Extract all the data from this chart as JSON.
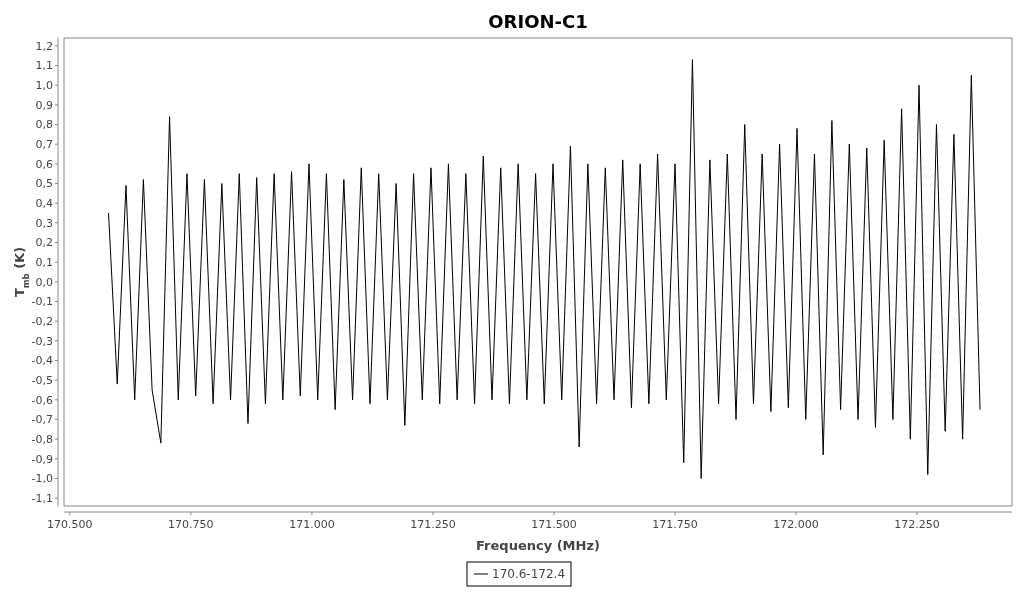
{
  "chart_data": {
    "type": "line",
    "title": "ORION-C1",
    "xlabel": "Frequency (MHz)",
    "ylabel": "T$_{mb}$ (K)",
    "xlim": [
      170488,
      172446
    ],
    "ylim": [
      -1.14,
      1.24
    ],
    "xticks": [
      {
        "value": 170500,
        "label": "170.500"
      },
      {
        "value": 170750,
        "label": "170.750"
      },
      {
        "value": 171000,
        "label": "171.000"
      },
      {
        "value": 171250,
        "label": "171.250"
      },
      {
        "value": 171500,
        "label": "171.500"
      },
      {
        "value": 171750,
        "label": "171.750"
      },
      {
        "value": 172000,
        "label": "172.000"
      },
      {
        "value": 172250,
        "label": "172.250"
      }
    ],
    "yticks": [
      {
        "value": -1.1,
        "label": "-1,1"
      },
      {
        "value": -1,
        "label": "-1,0"
      },
      {
        "value": -0.9,
        "label": "-0,9"
      },
      {
        "value": -0.8,
        "label": "-0,8"
      },
      {
        "value": -0.7,
        "label": "-0,7"
      },
      {
        "value": -0.6,
        "label": "-0,6"
      },
      {
        "value": -0.5,
        "label": "-0,5"
      },
      {
        "value": -0.4,
        "label": "-0,4"
      },
      {
        "value": -0.3,
        "label": "-0,3"
      },
      {
        "value": -0.2,
        "label": "-0,2"
      },
      {
        "value": -0.1,
        "label": "-0,1"
      },
      {
        "value": 0,
        "label": "0,0"
      },
      {
        "value": 0.1,
        "label": "0,1"
      },
      {
        "value": 0.2,
        "label": "0,2"
      },
      {
        "value": 0.3,
        "label": "0,3"
      },
      {
        "value": 0.4,
        "label": "0,4"
      },
      {
        "value": 0.5,
        "label": "0,5"
      },
      {
        "value": 0.6,
        "label": "0,6"
      },
      {
        "value": 0.7,
        "label": "0,7"
      },
      {
        "value": 0.8,
        "label": "0,8"
      },
      {
        "value": 0.9,
        "label": "0,9"
      },
      {
        "value": 1,
        "label": "1,0"
      },
      {
        "value": 1.1,
        "label": "1,1"
      },
      {
        "value": 1.2,
        "label": "1,2"
      }
    ],
    "grid": false,
    "legend": "bottom",
    "marker": "none",
    "line_style": "solid",
    "x": [
      170580,
      170598,
      170616,
      170634,
      170652,
      170670,
      170688,
      170706,
      170724,
      170742,
      170760,
      170778,
      170796,
      170814,
      170832,
      170850,
      170868,
      170886,
      170904,
      170922,
      170940,
      170958,
      170976,
      170994,
      171012,
      171030,
      171048,
      171066,
      171084,
      171102,
      171120,
      171138,
      171156,
      171174,
      171192,
      171210,
      171228,
      171246,
      171264,
      171282,
      171300,
      171318,
      171336,
      171354,
      171372,
      171390,
      171408,
      171426,
      171444,
      171462,
      171480,
      171498,
      171516,
      171534,
      171552,
      171570,
      171588,
      171606,
      171624,
      171642,
      171660,
      171678,
      171696,
      171714,
      171732,
      171750,
      171768,
      171786,
      171804,
      171822,
      171840,
      171858,
      171876,
      171894,
      171912,
      171930,
      171948,
      171966,
      171984,
      172002,
      172020,
      172038,
      172056,
      172074,
      172092,
      172110,
      172128,
      172146,
      172164,
      172182,
      172200,
      172218,
      172236,
      172254,
      172272,
      172290,
      172308,
      172326,
      172344,
      172362,
      172380
    ],
    "series": [
      {
        "name": "170.6-172.4",
        "color": "#000000",
        "values": [
          0.35,
          -0.52,
          0.49,
          -0.6,
          0.52,
          -0.55,
          -0.82,
          0.84,
          -0.6,
          0.55,
          -0.58,
          0.52,
          -0.62,
          0.5,
          -0.6,
          0.55,
          -0.72,
          0.53,
          -0.62,
          0.55,
          -0.6,
          0.56,
          -0.58,
          0.6,
          -0.6,
          0.55,
          -0.65,
          0.52,
          -0.6,
          0.58,
          -0.62,
          0.55,
          -0.6,
          0.5,
          -0.73,
          0.55,
          -0.6,
          0.58,
          -0.62,
          0.6,
          -0.6,
          0.55,
          -0.62,
          0.64,
          -0.6,
          0.58,
          -0.62,
          0.6,
          -0.6,
          0.55,
          -0.62,
          0.6,
          -0.6,
          0.69,
          -0.84,
          0.6,
          -0.62,
          0.58,
          -0.6,
          0.62,
          -0.64,
          0.6,
          -0.62,
          0.65,
          -0.6,
          0.6,
          -0.92,
          1.13,
          -1.0,
          0.62,
          -0.62,
          0.65,
          -0.7,
          0.8,
          -0.62,
          0.65,
          -0.66,
          0.7,
          -0.64,
          0.78,
          -0.7,
          0.65,
          -0.88,
          0.82,
          -0.65,
          0.7,
          -0.7,
          0.68,
          -0.74,
          0.72,
          -0.7,
          0.88,
          -0.8,
          1.0,
          -0.98,
          0.8,
          -0.76,
          0.75,
          -0.8,
          1.05,
          -0.65
        ]
      }
    ]
  }
}
